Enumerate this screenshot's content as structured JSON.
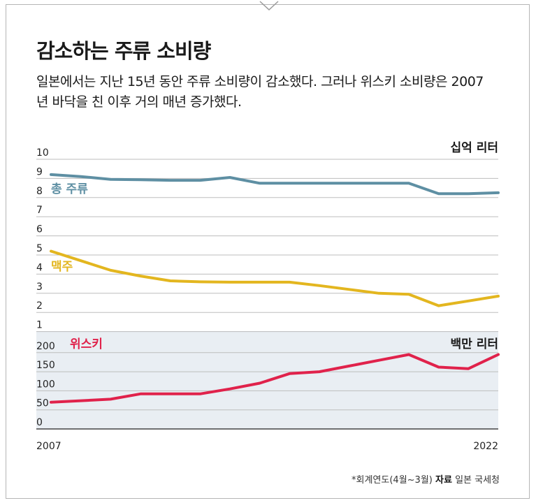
{
  "title": "감소하는 주류 소비량",
  "subtitle": "일본에서는 지난 15년 동안 주류 소비량이 감소했다. 그러나 위스키 소비량은 2007년 바닥을 친 이후 거의 매년 증가했다.",
  "source": {
    "note": "*회계연도(4월~3월)",
    "label": "자료",
    "name": "일본 국세청"
  },
  "colors": {
    "total": "#5e8fa3",
    "beer": "#e3b61f",
    "whisky": "#e0224b",
    "whisky_panel": "#e9eef3",
    "grid": "#bdbdbd"
  },
  "chart_data": [
    {
      "type": "line",
      "unit_label": "십억 리터",
      "x": [
        2007,
        2008,
        2009,
        2010,
        2011,
        2012,
        2013,
        2014,
        2015,
        2016,
        2017,
        2018,
        2019,
        2020,
        2021,
        2022
      ],
      "x_tick_labels": [
        "2007",
        "2022"
      ],
      "ylim": [
        1,
        10
      ],
      "y_ticks": [
        1,
        2,
        3,
        4,
        5,
        6,
        7,
        8,
        9,
        10
      ],
      "grid": true,
      "series": [
        {
          "name": "총 주류",
          "key": "total",
          "values": [
            9.2,
            9.1,
            8.95,
            8.93,
            8.9,
            8.9,
            9.05,
            8.75,
            8.75,
            8.75,
            8.75,
            8.75,
            8.75,
            8.2,
            8.2,
            8.25
          ]
        },
        {
          "name": "맥주",
          "key": "beer",
          "values": [
            5.2,
            4.7,
            4.2,
            3.9,
            3.65,
            3.6,
            3.58,
            3.58,
            3.58,
            3.4,
            3.2,
            3.0,
            2.95,
            2.35,
            2.6,
            2.85
          ]
        }
      ]
    },
    {
      "type": "line",
      "unit_label": "백만 리터",
      "x": [
        2007,
        2008,
        2009,
        2010,
        2011,
        2012,
        2013,
        2014,
        2015,
        2016,
        2017,
        2018,
        2019,
        2020,
        2021,
        2022
      ],
      "ylim": [
        0,
        220
      ],
      "y_ticks": [
        0,
        50,
        100,
        150,
        200
      ],
      "y_tick_labels": [
        "0",
        "50",
        "100",
        "150",
        "200"
      ],
      "grid": true,
      "series": [
        {
          "name": "위스키",
          "key": "whisky",
          "values": [
            70,
            74,
            78,
            92,
            92,
            92,
            105,
            120,
            145,
            150,
            165,
            180,
            195,
            162,
            158,
            195
          ]
        }
      ]
    }
  ]
}
